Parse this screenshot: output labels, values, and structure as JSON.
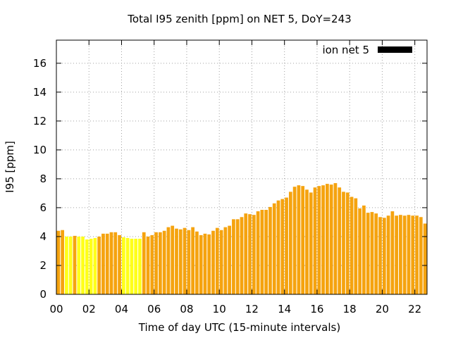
{
  "chart_data": {
    "type": "bar",
    "title": "Total I95 zenith [ppm] on NET 5, DoY=243",
    "xlabel": "Time of day UTC (15-minute intervals)",
    "ylabel": "I95 [ppm]",
    "xlim": [
      0,
      22.75
    ],
    "ylim": [
      0,
      17.6
    ],
    "grid": true,
    "legend_position": "top-right",
    "x_ticks": [
      0,
      2,
      4,
      6,
      8,
      10,
      12,
      14,
      16,
      18,
      20,
      22
    ],
    "x_tick_labels": [
      "00",
      "02",
      "04",
      "06",
      "08",
      "10",
      "12",
      "14",
      "16",
      "18",
      "20",
      "22"
    ],
    "y_ticks": [
      0,
      2,
      4,
      6,
      8,
      10,
      12,
      14,
      16
    ],
    "y_tick_labels": [
      "0",
      "2",
      "4",
      "6",
      "8",
      "10",
      "12",
      "14",
      "16"
    ],
    "colors": {
      "orange": "#f5a30f",
      "yellow": "#ffff1a",
      "legend_swatch": "#000000"
    },
    "series": [
      {
        "name": "ion net 5",
        "x_interval_hours": 0.25,
        "values": [
          4.4,
          4.45,
          4.0,
          4.0,
          4.05,
          4.0,
          4.0,
          3.8,
          3.85,
          3.9,
          4.0,
          4.2,
          4.2,
          4.3,
          4.3,
          4.1,
          3.95,
          3.9,
          3.85,
          3.85,
          3.85,
          4.3,
          4.0,
          4.1,
          4.3,
          4.3,
          4.4,
          4.65,
          4.75,
          4.55,
          4.5,
          4.6,
          4.45,
          4.65,
          4.35,
          4.1,
          4.2,
          4.15,
          4.4,
          4.6,
          4.45,
          4.65,
          4.75,
          5.2,
          5.2,
          5.35,
          5.6,
          5.55,
          5.5,
          5.75,
          5.85,
          5.85,
          6.05,
          6.3,
          6.5,
          6.6,
          6.7,
          7.1,
          7.45,
          7.55,
          7.5,
          7.25,
          7.05,
          7.4,
          7.5,
          7.55,
          7.65,
          7.6,
          7.7,
          7.4,
          7.1,
          7.05,
          6.75,
          6.65,
          5.95,
          6.15,
          5.65,
          5.7,
          5.6,
          5.35,
          5.3,
          5.45,
          5.75,
          5.45,
          5.5,
          5.45,
          5.5,
          5.45,
          5.45,
          5.35,
          4.9
        ],
        "bar_colors": [
          "orange",
          "orange",
          "yellow",
          "yellow",
          "orange",
          "yellow",
          "yellow",
          "yellow",
          "yellow",
          "yellow",
          "orange",
          "orange",
          "orange",
          "orange",
          "orange",
          "orange",
          "yellow",
          "yellow",
          "yellow",
          "yellow",
          "yellow",
          "orange",
          "orange",
          "orange",
          "orange",
          "orange",
          "orange",
          "orange",
          "orange",
          "orange",
          "orange",
          "orange",
          "orange",
          "orange",
          "orange",
          "orange",
          "orange",
          "orange",
          "orange",
          "orange",
          "orange",
          "orange",
          "orange",
          "orange",
          "orange",
          "orange",
          "orange",
          "orange",
          "orange",
          "orange",
          "orange",
          "orange",
          "orange",
          "orange",
          "orange",
          "orange",
          "orange",
          "orange",
          "orange",
          "orange",
          "orange",
          "orange",
          "orange",
          "orange",
          "orange",
          "orange",
          "orange",
          "orange",
          "orange",
          "orange",
          "orange",
          "orange",
          "orange",
          "orange",
          "orange",
          "orange",
          "orange",
          "orange",
          "orange",
          "orange",
          "orange",
          "orange",
          "orange",
          "orange",
          "orange",
          "orange",
          "orange",
          "orange",
          "orange",
          "orange",
          "orange"
        ]
      }
    ]
  }
}
